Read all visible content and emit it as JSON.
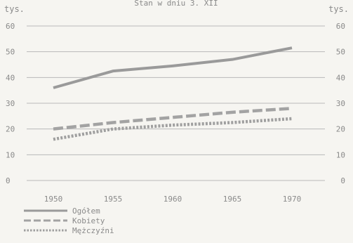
{
  "caption_top": "Stan w dniu 3. XII",
  "chart_data": {
    "type": "line",
    "y_unit_left": "tys.",
    "y_unit_right": "tys.",
    "x": [
      1950,
      1955,
      1960,
      1965,
      1970
    ],
    "ylim": [
      0,
      60
    ],
    "yticks": [
      0,
      10,
      20,
      30,
      40,
      50,
      60
    ],
    "grid": true,
    "legend_position": "bottom-left",
    "series": [
      {
        "name": "Ogółem",
        "values": [
          36,
          42.5,
          44.5,
          47,
          51.5
        ],
        "style": "solid",
        "color": "#9a9a9a"
      },
      {
        "name": "Kobiety",
        "values": [
          20,
          22.5,
          24.5,
          26.5,
          28
        ],
        "style": "dashed",
        "color": "#a3a3a3"
      },
      {
        "name": "Mężczyźni",
        "values": [
          16,
          20,
          21.5,
          22.5,
          24
        ],
        "style": "dotted",
        "color": "#9f9f9f"
      }
    ]
  }
}
